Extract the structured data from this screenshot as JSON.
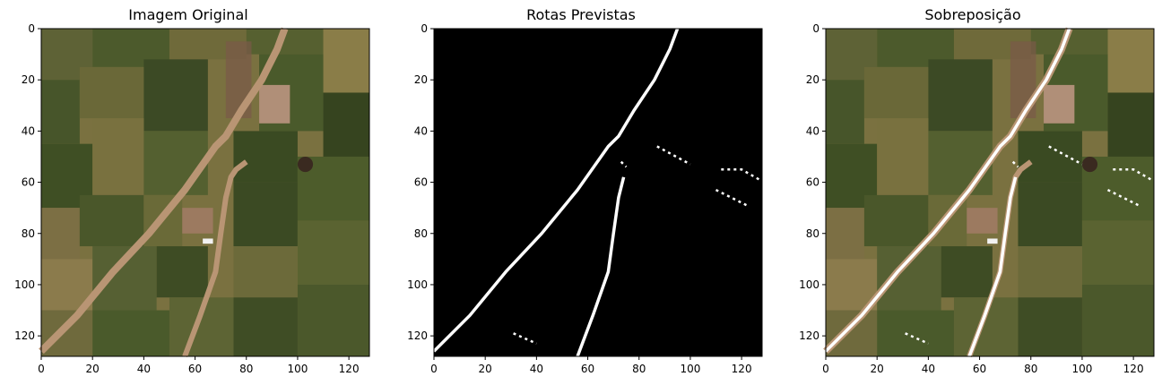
{
  "panels": [
    {
      "title": "Imagem Original",
      "content": "aerial-farmland-image"
    },
    {
      "title": "Rotas Previstas",
      "content": "predicted-road-mask"
    },
    {
      "title": "Sobreposição",
      "content": "overlay-image"
    }
  ],
  "axes": {
    "x_ticks": [
      "0",
      "20",
      "40",
      "60",
      "80",
      "100",
      "120"
    ],
    "y_ticks": [
      "0",
      "20",
      "40",
      "60",
      "80",
      "100",
      "120"
    ],
    "range": [
      0,
      128
    ]
  },
  "colors": {
    "mask_background": "#000000",
    "road_prediction": "#ffffff",
    "field_dark": "#3d4a26",
    "field_light": "#7a7140",
    "dirt_road": "#b99574"
  }
}
